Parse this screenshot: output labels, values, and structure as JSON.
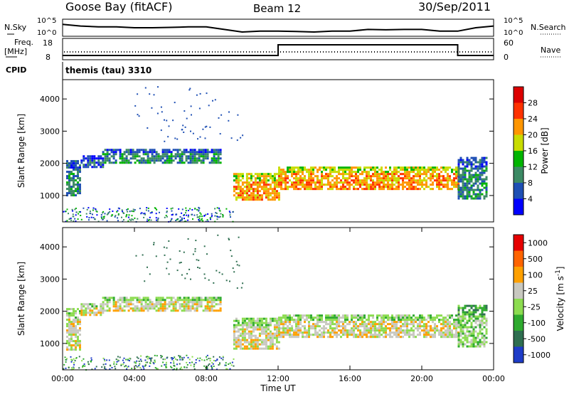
{
  "header": {
    "station": "Goose Bay (fitACF)",
    "beam": "Beam 12",
    "date": "30/Sep/2011"
  },
  "chart_data": [
    {
      "type": "line",
      "panel": "noise",
      "left_label": "N.Sky",
      "right_label": "N.Search",
      "left_ticks": [
        "10^5",
        "10^0"
      ],
      "right_ticks": [
        "10^5",
        "10^0"
      ],
      "x": [
        0,
        1,
        2,
        3,
        4,
        5,
        6,
        7,
        8,
        9,
        10,
        11,
        12,
        13,
        14,
        15,
        16,
        17,
        18,
        19,
        20,
        21,
        22,
        23,
        24
      ],
      "values": [
        0.7,
        0.6,
        0.55,
        0.55,
        0.5,
        0.5,
        0.52,
        0.55,
        0.55,
        0.4,
        0.25,
        0.3,
        0.3,
        0.28,
        0.25,
        0.3,
        0.3,
        0.4,
        0.38,
        0.4,
        0.4,
        0.3,
        0.3,
        0.5,
        0.6
      ]
    },
    {
      "type": "line",
      "panel": "frequency",
      "left_label_line1": "Freq.",
      "left_label_line2": "[MHz]",
      "right_label": "Nave",
      "left_ticks": [
        "18",
        "8"
      ],
      "right_ticks": [
        "60",
        "0"
      ],
      "series": [
        {
          "x": [
            0,
            12,
            12,
            22,
            22,
            24
          ],
          "values": [
            10,
            10,
            15,
            15,
            10,
            10
          ]
        }
      ]
    },
    {
      "type": "table",
      "panel": "cpid",
      "label": "CPID",
      "value": "themis (tau) 3310"
    },
    {
      "type": "heatmap",
      "panel": "power",
      "ylabel": "Slant Range [km]",
      "yticks": [
        "1000",
        "2000",
        "3000",
        "4000"
      ],
      "ylim": [
        180,
        4600
      ],
      "colorbar_label": "Power [dB]",
      "colorbar_ticks": [
        "4",
        "8",
        "12",
        "16",
        "20",
        "24",
        "28"
      ],
      "colors": [
        "#0000ff",
        "#1e4fb4",
        "#3c8a64",
        "#00b400",
        "#c8dc00",
        "#ff9600",
        "#ff3200",
        "#dc0000"
      ],
      "bands": [
        {
          "x": [
            0.2,
            1.0
          ],
          "y": [
            1000,
            2100
          ],
          "level": 2
        },
        {
          "x": [
            1.0,
            2.2
          ],
          "y": [
            1900,
            2250
          ],
          "level": 1
        },
        {
          "x": [
            2.2,
            8.8
          ],
          "y": [
            2050,
            2450
          ],
          "level": 2
        },
        {
          "x": [
            9.5,
            12.0
          ],
          "y": [
            850,
            1700
          ],
          "level": 5
        },
        {
          "x": [
            12.0,
            22.0
          ],
          "y": [
            1200,
            1900
          ],
          "level": 5
        },
        {
          "x": [
            22.0,
            23.6
          ],
          "y": [
            900,
            2200
          ],
          "level": 2
        }
      ]
    },
    {
      "type": "heatmap",
      "panel": "velocity",
      "ylabel": "Slant Range [km]",
      "yticks": [
        "1000",
        "2000",
        "3000",
        "4000"
      ],
      "ylim": [
        180,
        4600
      ],
      "xlabel": "Time UT",
      "xticks": [
        "00:00",
        "04:00",
        "08:00",
        "12:00",
        "16:00",
        "20:00",
        "00:00"
      ],
      "xlim": [
        0,
        24
      ],
      "colorbar_label": "Velocity [m s",
      "colorbar_label_sup": "-1",
      "colorbar_label_end": "]",
      "colorbar_ticks": [
        "1000",
        "500",
        "100",
        "25",
        "-25",
        "-100",
        "-500",
        "-1000"
      ],
      "colors": [
        "#1e3cc8",
        "#2e6e50",
        "#2eaa2e",
        "#8cdc50",
        "#c8c8c0",
        "#ffa000",
        "#ff6400",
        "#e60000"
      ],
      "bands": [
        {
          "x": [
            0.2,
            1.0
          ],
          "y": [
            800,
            2100
          ],
          "level": 4
        },
        {
          "x": [
            1.0,
            2.2
          ],
          "y": [
            1900,
            2250
          ],
          "level": 4
        },
        {
          "x": [
            2.2,
            8.8
          ],
          "y": [
            2050,
            2450
          ],
          "level": 4
        },
        {
          "x": [
            9.5,
            12.0
          ],
          "y": [
            850,
            1800
          ],
          "level": 4
        },
        {
          "x": [
            12.0,
            22.0
          ],
          "y": [
            1200,
            1900
          ],
          "level": 4
        },
        {
          "x": [
            22.0,
            23.6
          ],
          "y": [
            900,
            2200
          ],
          "level": 3
        }
      ]
    }
  ]
}
